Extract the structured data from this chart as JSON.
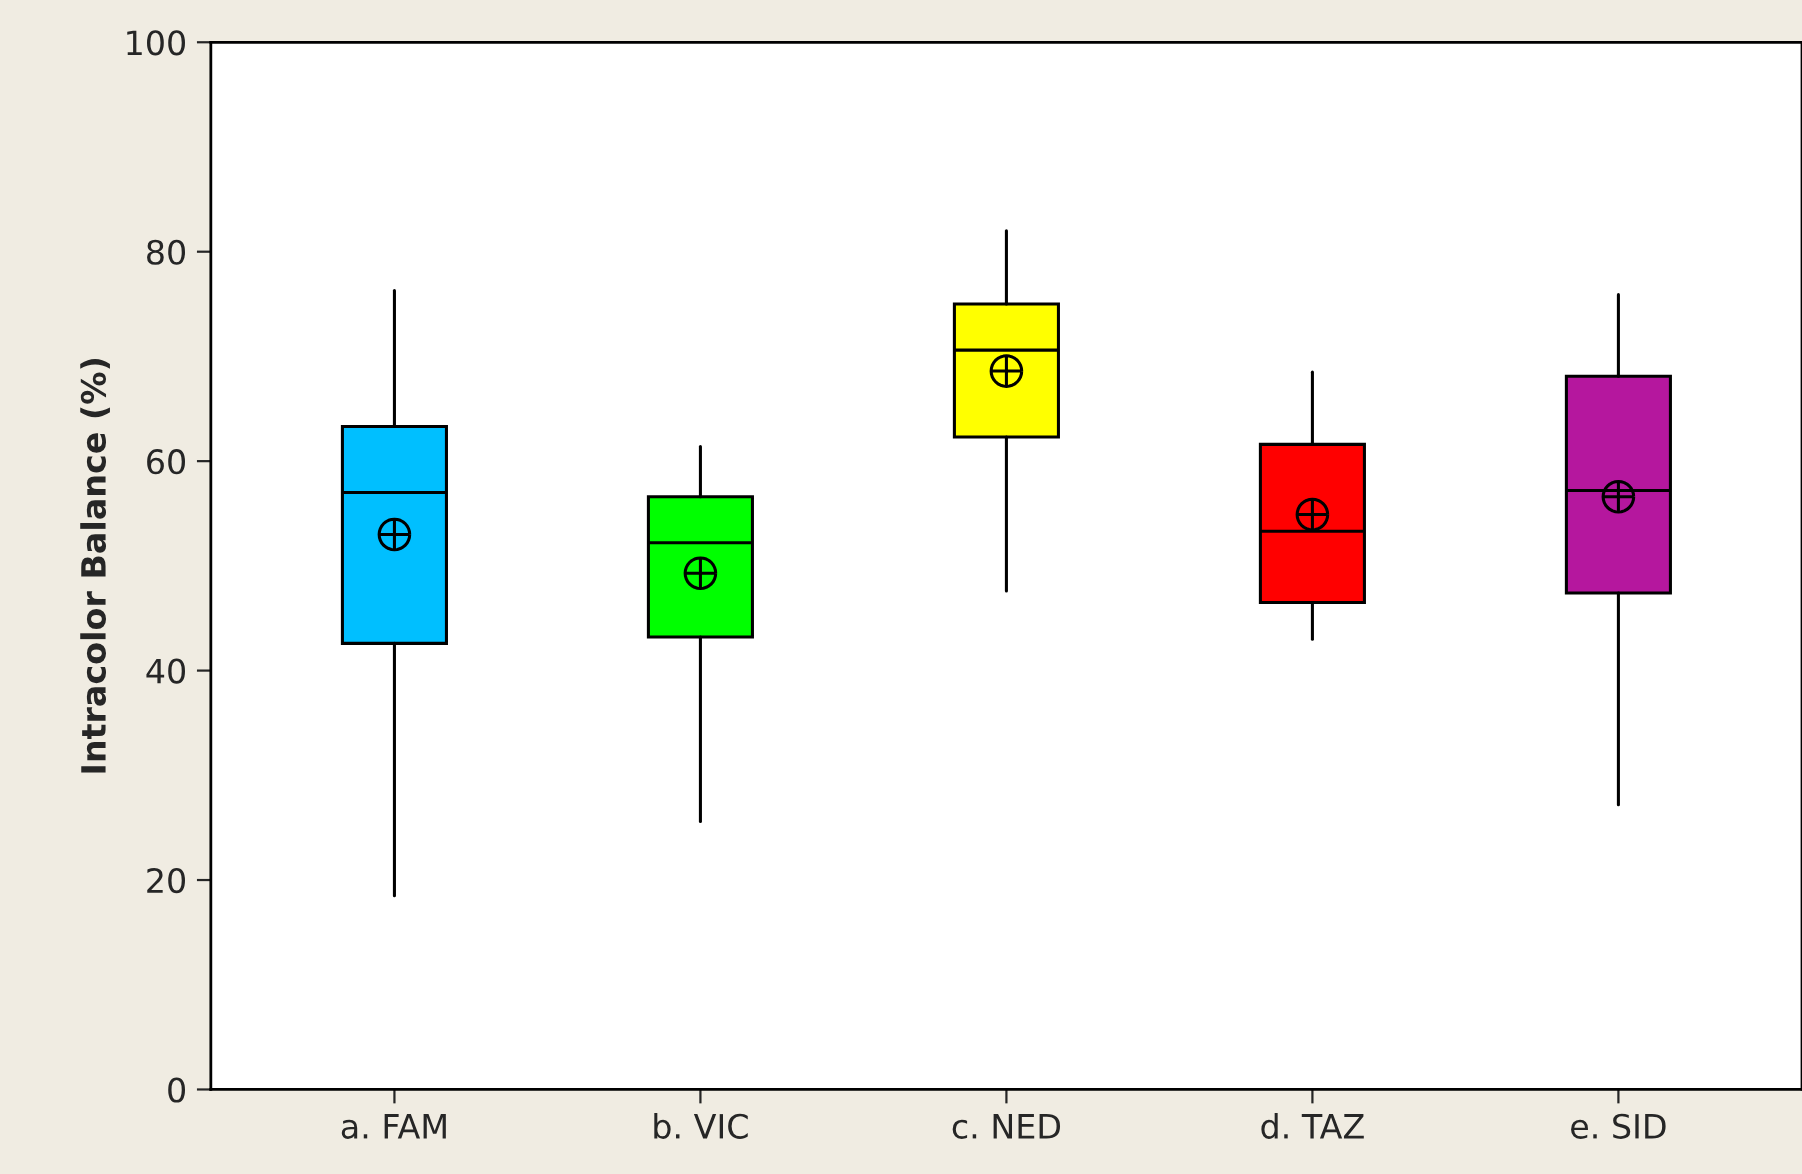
{
  "chart_data": {
    "type": "box",
    "ylabel": "Intracolor Balance (%)",
    "categories": [
      "a. FAM",
      "b. VIC",
      "c. NED",
      "d. TAZ",
      "e. SID"
    ],
    "colors": [
      "#00bfff",
      "#00ff00",
      "#ffff00",
      "#ff0000",
      "#b5179e"
    ],
    "boxes": [
      {
        "low": 18.5,
        "q1": 42.6,
        "median": 57.0,
        "q3": 63.3,
        "high": 76.3,
        "mean": 53.0
      },
      {
        "low": 25.6,
        "q1": 43.2,
        "median": 52.2,
        "q3": 56.6,
        "high": 61.4,
        "mean": 49.3
      },
      {
        "low": 47.6,
        "q1": 62.3,
        "median": 70.6,
        "q3": 75.0,
        "high": 82.0,
        "mean": 68.6
      },
      {
        "low": 43.0,
        "q1": 46.5,
        "median": 53.3,
        "q3": 61.6,
        "high": 68.5,
        "mean": 54.9
      },
      {
        "low": 27.2,
        "q1": 47.4,
        "median": 57.2,
        "q3": 68.1,
        "high": 75.9,
        "mean": 56.6
      }
    ],
    "ylim": [
      0,
      100
    ],
    "yticks": [
      0,
      20,
      40,
      60,
      80,
      100
    ],
    "grid": false,
    "legend": false
  }
}
